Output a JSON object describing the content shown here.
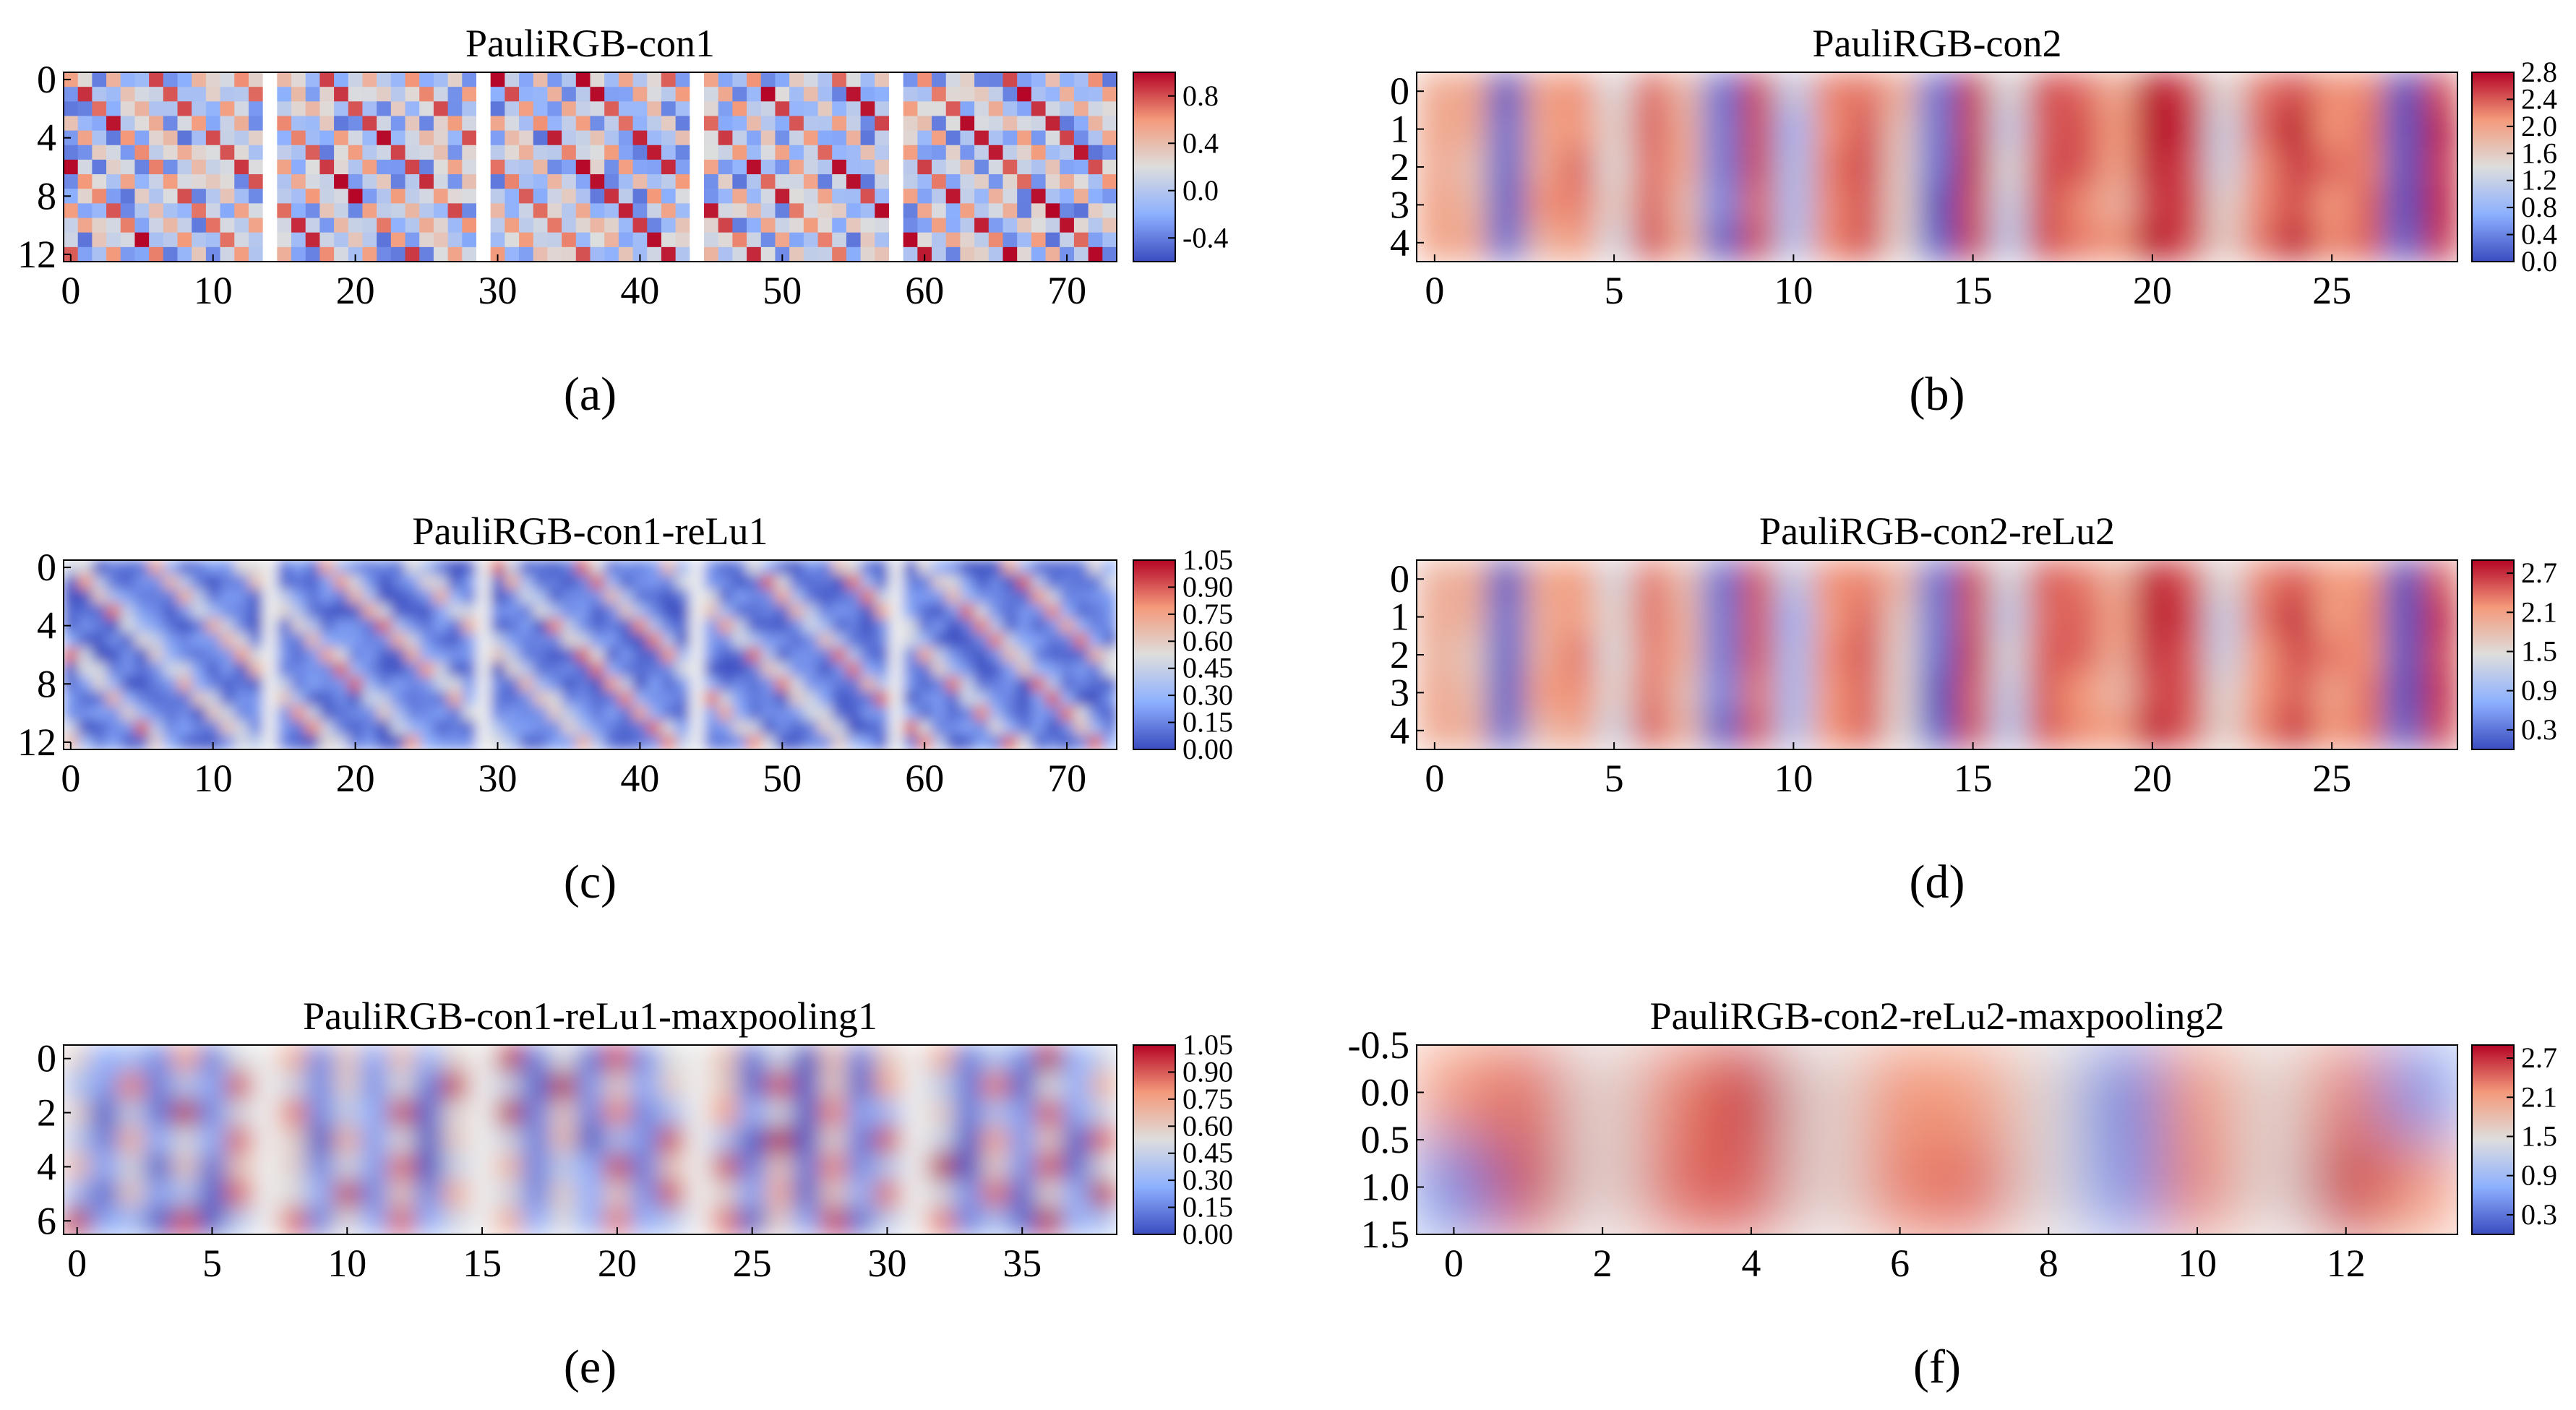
{
  "colormap": {
    "name": "coolwarm",
    "stops": [
      "#3b4cc0",
      "#8db0fe",
      "#dddddd",
      "#f49a7b",
      "#b40426"
    ]
  },
  "chart_data": [
    {
      "id": "a",
      "type": "heatmap",
      "title": "PauliRGB-con1",
      "caption": "(a)",
      "render": "pixel",
      "cols": 74,
      "rows": 13,
      "xlim": [
        -0.5,
        73.5
      ],
      "ylim": [
        -0.5,
        12.5
      ],
      "y_inverted": true,
      "xticks": [
        0,
        10,
        20,
        30,
        40,
        50,
        60,
        70
      ],
      "yticks": [
        0,
        4,
        8,
        12
      ],
      "gap_columns": [
        14,
        29,
        44,
        58
      ],
      "colorbar": {
        "min": -0.6,
        "max": 1.0,
        "ticks": [
          "0.8",
          "0.4",
          "0.0",
          "-0.4"
        ],
        "tick_values": [
          0.8,
          0.4,
          0.0,
          -0.4
        ]
      }
    },
    {
      "id": "b",
      "type": "heatmap",
      "title": "PauliRGB-con2",
      "caption": "(b)",
      "render": "smooth",
      "cols": 29,
      "rows": 5,
      "xlim": [
        -0.5,
        28.5
      ],
      "ylim": [
        -0.5,
        4.5
      ],
      "y_inverted": true,
      "xticks": [
        0,
        5,
        10,
        15,
        20,
        25
      ],
      "yticks": [
        0,
        1,
        2,
        3,
        4
      ],
      "column_profile": [
        2.1,
        1.85,
        0.2,
        2.0,
        2.2,
        1.4,
        2.3,
        1.9,
        0.3,
        2.5,
        1.0,
        2.1,
        2.4,
        1.7,
        0.15,
        2.6,
        1.2,
        2.5,
        2.3,
        2.0,
        2.7,
        2.5,
        1.4,
        2.3,
        2.6,
        2.2,
        2.2,
        0.2,
        2.6
      ],
      "colorbar": {
        "min": 0.0,
        "max": 2.8,
        "ticks": [
          "2.8",
          "2.4",
          "2.0",
          "1.6",
          "1.2",
          "0.8",
          "0.4",
          "0.0"
        ],
        "tick_values": [
          2.8,
          2.4,
          2.0,
          1.6,
          1.2,
          0.8,
          0.4,
          0.0
        ]
      }
    },
    {
      "id": "c",
      "type": "heatmap",
      "title": "PauliRGB-con1-reLu1",
      "caption": "(c)",
      "render": "smooth",
      "cols": 74,
      "rows": 13,
      "xlim": [
        -0.5,
        73.5
      ],
      "ylim": [
        -0.5,
        12.5
      ],
      "y_inverted": true,
      "xticks": [
        0,
        10,
        20,
        30,
        40,
        50,
        60,
        70
      ],
      "yticks": [
        0,
        4,
        8,
        12
      ],
      "gap_columns": [
        14,
        29,
        44,
        58
      ],
      "colorbar": {
        "min": 0.0,
        "max": 1.05,
        "ticks": [
          "1.05",
          "0.90",
          "0.75",
          "0.60",
          "0.45",
          "0.30",
          "0.15",
          "0.00"
        ],
        "tick_values": [
          1.05,
          0.9,
          0.75,
          0.6,
          0.45,
          0.3,
          0.15,
          0.0
        ]
      }
    },
    {
      "id": "d",
      "type": "heatmap",
      "title": "PauliRGB-con2-reLu2",
      "caption": "(d)",
      "render": "smooth",
      "cols": 29,
      "rows": 5,
      "xlim": [
        -0.5,
        28.5
      ],
      "ylim": [
        -0.5,
        4.5
      ],
      "y_inverted": true,
      "xticks": [
        0,
        5,
        10,
        15,
        20,
        25
      ],
      "yticks": [
        0,
        1,
        2,
        3,
        4
      ],
      "column_profile": [
        2.1,
        1.85,
        0.2,
        2.0,
        2.2,
        1.4,
        2.3,
        1.9,
        0.3,
        2.5,
        1.0,
        2.1,
        2.4,
        1.7,
        0.15,
        2.6,
        1.2,
        2.5,
        2.3,
        2.0,
        2.7,
        2.5,
        1.4,
        2.3,
        2.6,
        2.2,
        2.2,
        0.2,
        2.6
      ],
      "colorbar": {
        "min": 0.0,
        "max": 2.9,
        "ticks": [
          "2.7",
          "2.1",
          "1.5",
          "0.9",
          "0.3"
        ],
        "tick_values": [
          2.7,
          2.1,
          1.5,
          0.9,
          0.3
        ]
      }
    },
    {
      "id": "e",
      "type": "heatmap",
      "title": "PauliRGB-con1-reLu1-maxpooling1",
      "caption": "(e)",
      "render": "smooth",
      "cols": 39,
      "rows": 7,
      "xlim": [
        -0.5,
        38.5
      ],
      "ylim": [
        -0.5,
        6.5
      ],
      "y_inverted": true,
      "xticks": [
        0,
        5,
        10,
        15,
        20,
        25,
        30,
        35
      ],
      "yticks": [
        0,
        2,
        4,
        6
      ],
      "gap_columns": [
        7,
        15,
        23,
        31
      ],
      "colorbar": {
        "min": 0.0,
        "max": 1.05,
        "ticks": [
          "1.05",
          "0.90",
          "0.75",
          "0.60",
          "0.45",
          "0.30",
          "0.15",
          "0.00"
        ],
        "tick_values": [
          1.05,
          0.9,
          0.75,
          0.6,
          0.45,
          0.3,
          0.15,
          0.0
        ]
      }
    },
    {
      "id": "f",
      "type": "heatmap",
      "title": "PauliRGB-con2-reLu2-maxpooling2",
      "caption": "(f)",
      "render": "smooth",
      "cols": 14,
      "rows": 2,
      "xlim": [
        -0.5,
        13.5
      ],
      "ylim": [
        -0.5,
        1.5
      ],
      "y_inverted": true,
      "xticks": [
        0,
        2,
        4,
        6,
        8,
        10,
        12
      ],
      "xtick_labels": [
        "0",
        "2",
        "4",
        "6",
        "8",
        "10",
        "12"
      ],
      "yticks": [
        -0.5,
        0.0,
        0.5,
        1.0,
        1.5
      ],
      "ytick_labels": [
        "-0.5",
        "0.0",
        "0.5",
        "1.0",
        "1.5"
      ],
      "grid": [
        [
          2.2,
          2.4,
          1.5,
          2.3,
          2.7,
          1.5,
          2.2,
          2.1,
          1.5,
          0.4,
          2.2,
          1.5,
          2.3,
          0.5
        ],
        [
          0.4,
          2.6,
          1.5,
          2.4,
          2.5,
          1.5,
          2.3,
          2.4,
          1.5,
          0.5,
          2.3,
          1.5,
          2.7,
          2.2
        ]
      ],
      "colorbar": {
        "min": 0.0,
        "max": 2.9,
        "ticks": [
          "2.7",
          "2.1",
          "1.5",
          "0.9",
          "0.3"
        ],
        "tick_values": [
          2.7,
          2.1,
          1.5,
          0.9,
          0.3
        ]
      }
    }
  ]
}
